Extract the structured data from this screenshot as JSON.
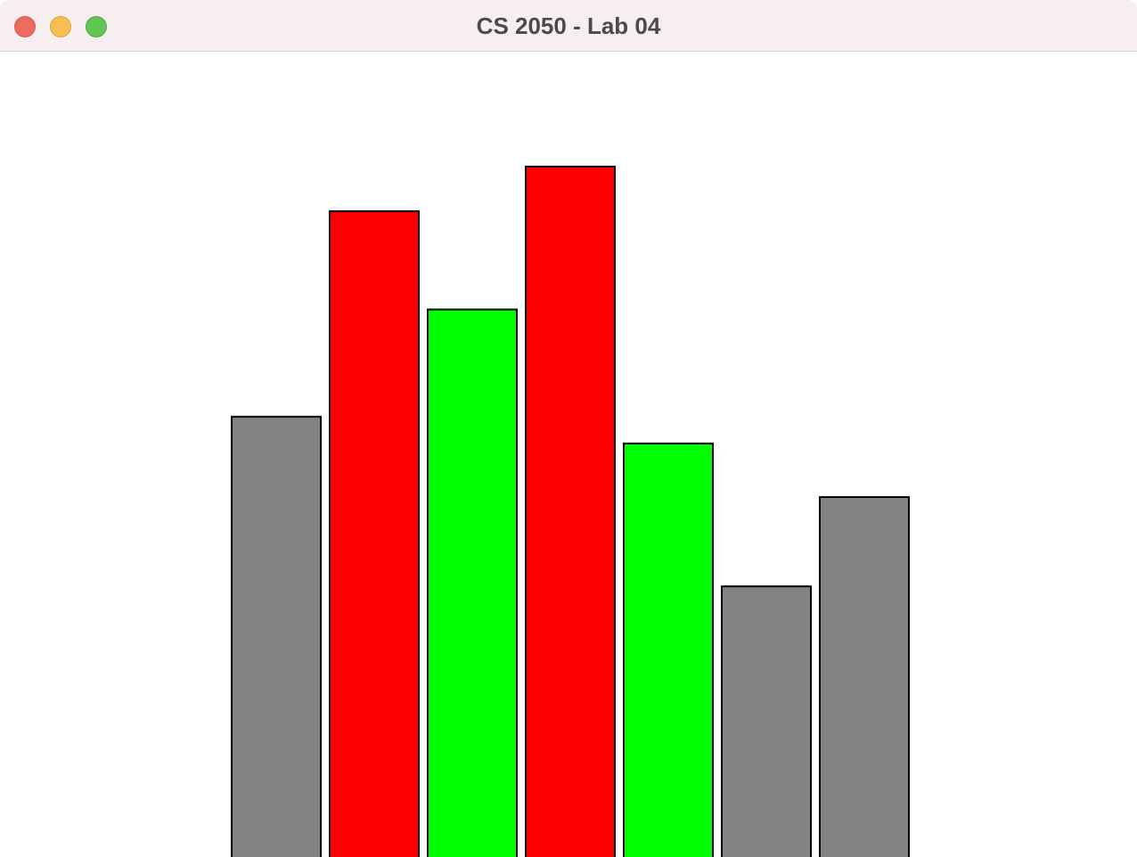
{
  "window": {
    "title": "CS 2050 - Lab 04"
  },
  "colors": {
    "gray": "#838383",
    "red": "#ff0000",
    "green": "#00ff00",
    "outline": "#000000"
  },
  "chart_data": {
    "type": "bar",
    "values": [
      495,
      725,
      615,
      775,
      465,
      305,
      405
    ],
    "colors": [
      "gray",
      "red",
      "green",
      "red",
      "green",
      "gray",
      "gray"
    ],
    "ylim": [
      0,
      775
    ]
  }
}
